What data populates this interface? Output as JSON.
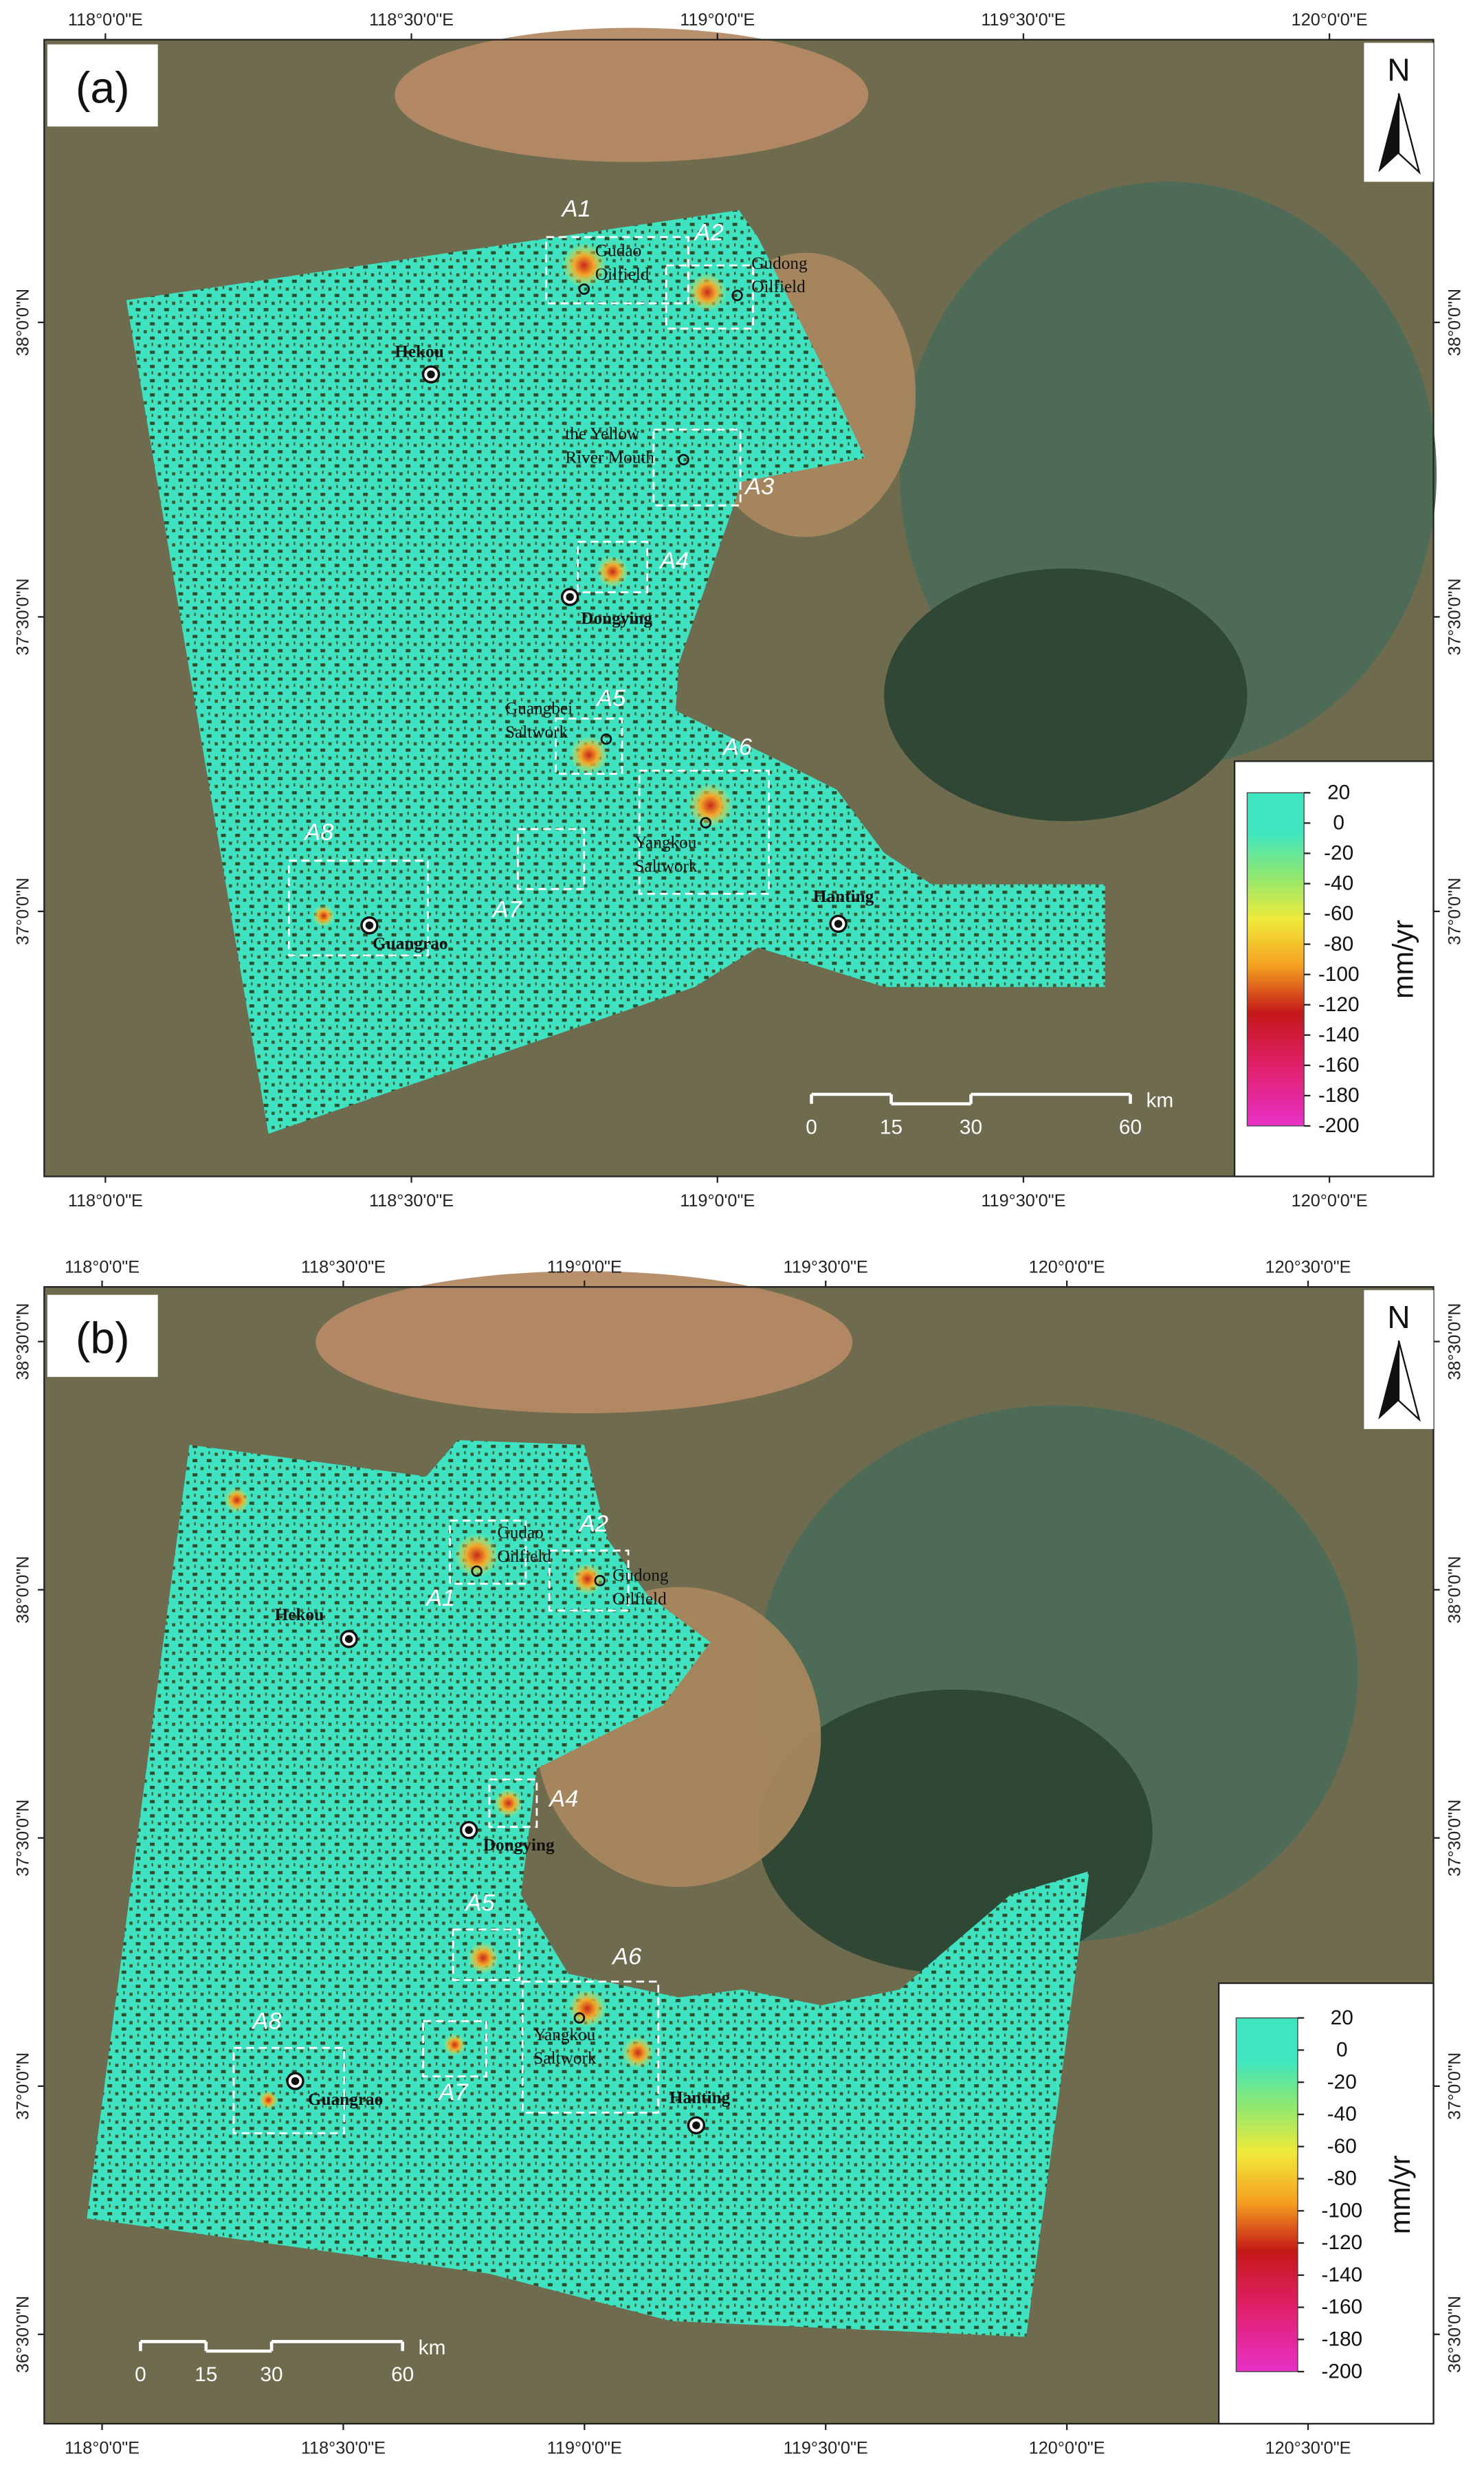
{
  "panels": [
    {
      "label": "(a)",
      "north": "N",
      "lon_ticks": [
        {
          "value": 118.0,
          "label": "118°0'0\"E"
        },
        {
          "value": 118.5,
          "label": "118°30'0\"E"
        },
        {
          "value": 119.0,
          "label": "119°0'0\"E"
        },
        {
          "value": 119.5,
          "label": "119°30'0\"E"
        },
        {
          "value": 120.0,
          "label": "120°0'0\"E"
        }
      ],
      "xlim": [
        117.9,
        120.17
      ],
      "lat_ticks": [
        {
          "value": 38.0,
          "label": "38°0'0\"N"
        },
        {
          "value": 37.5,
          "label": "37°30'0\"N"
        },
        {
          "value": 37.0,
          "label": "37°0'0\"N"
        }
      ],
      "ylim": [
        36.55,
        38.48
      ],
      "places": [
        {
          "lines": [
            "Hekou"
          ]
        },
        {
          "lines": [
            "Gudao",
            "Oilfield"
          ]
        },
        {
          "lines": [
            "Gudong",
            "Oilfield"
          ]
        },
        {
          "lines": [
            "the Yellow",
            "River Mouth"
          ]
        },
        {
          "lines": [
            "Dongying"
          ]
        },
        {
          "lines": [
            "Guangbei",
            "Saltwork"
          ]
        },
        {
          "lines": [
            "Yangkou",
            "Saltwork"
          ]
        },
        {
          "lines": [
            "Hanting"
          ]
        },
        {
          "lines": [
            "Guangrao"
          ]
        }
      ],
      "areas": [
        "A1",
        "A2",
        "A3",
        "A4",
        "A5",
        "A6",
        "A7",
        "A8"
      ],
      "colorbar": {
        "lim": [
          -200,
          20
        ],
        "ticks": [
          20,
          0,
          -20,
          -40,
          -60,
          -80,
          -100,
          -120,
          -140,
          -160,
          -180,
          -200
        ],
        "unit": "mm/yr"
      },
      "scale_bar": {
        "ticks": [
          0,
          15,
          30,
          60
        ],
        "unit": "km"
      }
    },
    {
      "label": "(b)",
      "north": "N",
      "lon_ticks": [
        {
          "value": 118.0,
          "label": "118°0'0\"E"
        },
        {
          "value": 118.5,
          "label": "118°30'0\"E"
        },
        {
          "value": 119.0,
          "label": "119°0'0\"E"
        },
        {
          "value": 119.5,
          "label": "119°30'0\"E"
        },
        {
          "value": 120.0,
          "label": "120°0'0\"E"
        },
        {
          "value": 120.5,
          "label": "120°30'0\"E"
        }
      ],
      "xlim": [
        117.88,
        120.76
      ],
      "lat_ticks": [
        {
          "value": 38.5,
          "label": "38°30'0\"N"
        },
        {
          "value": 38.0,
          "label": "38°0'0\"N"
        },
        {
          "value": 37.5,
          "label": "37°30'0\"N"
        },
        {
          "value": 37.0,
          "label": "37°0'0\"N"
        },
        {
          "value": 36.5,
          "label": "36°30'0\"N"
        }
      ],
      "ylim": [
        36.32,
        38.61
      ],
      "places": [
        {
          "lines": [
            "Hekou"
          ]
        },
        {
          "lines": [
            "Gudao",
            "Oilfield"
          ]
        },
        {
          "lines": [
            "Gudong",
            "Oilfield"
          ]
        },
        {
          "lines": [
            "Dongying"
          ]
        },
        {
          "lines": [
            "Yangkou",
            "Saltwork"
          ]
        },
        {
          "lines": [
            "Hanting"
          ]
        },
        {
          "lines": [
            "Guangrao"
          ]
        }
      ],
      "areas": [
        "A1",
        "A2",
        "A4",
        "A5",
        "A6",
        "A7",
        "A8"
      ],
      "colorbar": {
        "lim": [
          -200,
          20
        ],
        "ticks": [
          20,
          0,
          -20,
          -40,
          -60,
          -80,
          -100,
          -120,
          -140,
          -160,
          -180,
          -200
        ],
        "unit": "mm/yr"
      },
      "scale_bar": {
        "ticks": [
          0,
          15,
          30,
          60
        ],
        "unit": "km"
      }
    }
  ]
}
